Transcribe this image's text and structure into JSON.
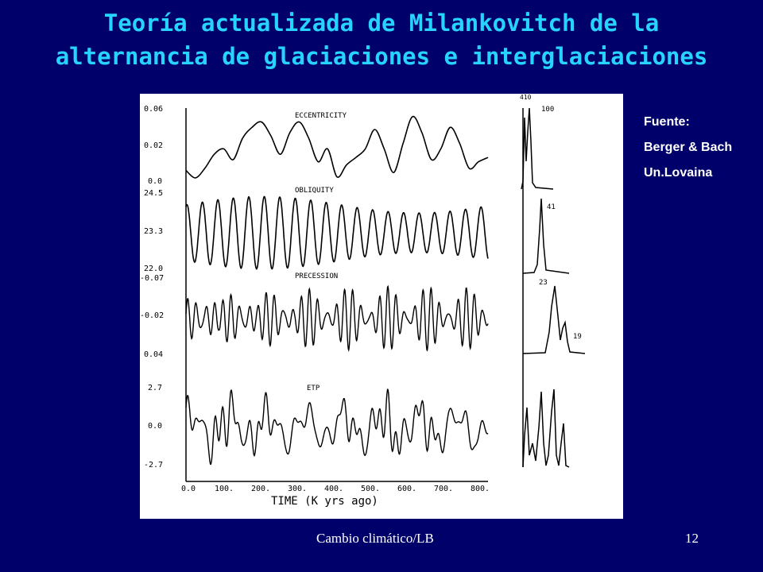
{
  "slide": {
    "title_line1": "Teoría actualizada de Milankovitch de la",
    "title_line2": "alternancia de glaciaciones e interglaciaciones",
    "footer_left": "Cambio climático/LB",
    "page_number": "12",
    "background_color": "#00006a",
    "title_color": "#27d3ff"
  },
  "source": {
    "label": "Fuente:",
    "authors": "Berger & Bach",
    "institution": "Un.Lovaina"
  },
  "chart_data": [
    {
      "type": "line",
      "title": "ECCENTRICITY",
      "yticks": [
        "0.06",
        "0.02",
        "0.0"
      ],
      "ylim": [
        0.0,
        0.065
      ],
      "x": [
        0,
        25,
        50,
        75,
        100,
        125,
        150,
        175,
        200,
        225,
        250,
        275,
        300,
        325,
        350,
        375,
        400,
        425,
        450,
        475,
        500,
        525,
        550,
        575,
        600,
        625,
        650,
        675,
        700,
        725,
        750,
        775,
        800
      ],
      "values": [
        0.01,
        0.003,
        0.012,
        0.025,
        0.03,
        0.02,
        0.04,
        0.05,
        0.055,
        0.042,
        0.025,
        0.045,
        0.055,
        0.04,
        0.018,
        0.03,
        0.004,
        0.015,
        0.022,
        0.03,
        0.048,
        0.03,
        0.008,
        0.035,
        0.06,
        0.045,
        0.02,
        0.03,
        0.05,
        0.035,
        0.012,
        0.018,
        0.022
      ]
    },
    {
      "type": "line",
      "title": "OBLIQUITY",
      "yticks": [
        "24.5",
        "23.3",
        "22.0"
      ],
      "ylim": [
        22.0,
        24.5
      ],
      "x_period": 41,
      "amplitude": 1.2,
      "mean": 23.3
    },
    {
      "type": "line",
      "title": "PRECESSION",
      "yticks": [
        "-0.07",
        "-0.02",
        "0.04"
      ],
      "ylim": [
        -0.07,
        0.04
      ],
      "x_period": 23,
      "amplitude": 0.05,
      "mean": -0.02
    },
    {
      "type": "line",
      "title": "ETP",
      "yticks": [
        "2.7",
        "0.0",
        "-2.7"
      ],
      "ylim": [
        -2.7,
        2.7
      ]
    },
    {
      "type": "line",
      "title": "spectrum",
      "panels": [
        {
          "labels": [
            "410",
            "100"
          ]
        },
        {
          "labels": [
            "41"
          ]
        },
        {
          "labels": [
            "23",
            "19"
          ]
        },
        {
          "labels": []
        }
      ]
    }
  ],
  "x_axis": {
    "label": "TIME (K yrs ago)",
    "xlim": [
      0,
      800
    ],
    "ticks": [
      "0.0",
      "100.",
      "200.",
      "300.",
      "400.",
      "500.",
      "600.",
      "700.",
      "800."
    ]
  }
}
